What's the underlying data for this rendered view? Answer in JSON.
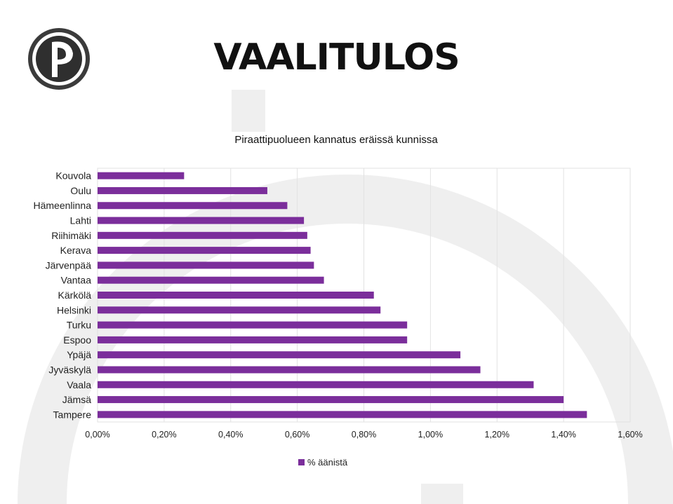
{
  "page": {
    "title": "VAALITULOS"
  },
  "colors": {
    "bar": "#7b2e9b",
    "grid": "#e2e2e2",
    "background_shape": "#eeeeee",
    "logo_outer": "#3b3b3b"
  },
  "chart_data": {
    "type": "bar",
    "orientation": "horizontal",
    "title": "Piraattipuolueen kannatus eräissä kunnissa",
    "xlabel": "",
    "ylabel": "",
    "categories": [
      "Kouvola",
      "Oulu",
      "Hämeenlinna",
      "Lahti",
      "Riihimäki",
      "Kerava",
      "Järvenpää",
      "Vantaa",
      "Kärkölä",
      "Helsinki",
      "Turku",
      "Espoo",
      "Ypäjä",
      "Jyväskylä",
      "Vaala",
      "Jämsä",
      "Tampere"
    ],
    "series": [
      {
        "name": "% äänistä",
        "values": [
          0.26,
          0.51,
          0.57,
          0.62,
          0.63,
          0.64,
          0.65,
          0.68,
          0.83,
          0.85,
          0.93,
          0.93,
          1.09,
          1.15,
          1.31,
          1.4,
          1.47
        ]
      }
    ],
    "xlim": [
      0,
      1.6
    ],
    "xticks": [
      "0,00%",
      "0,20%",
      "0,40%",
      "0,60%",
      "0,80%",
      "1,00%",
      "1,20%",
      "1,40%",
      "1,60%"
    ],
    "grid": true,
    "legend_position": "bottom"
  }
}
